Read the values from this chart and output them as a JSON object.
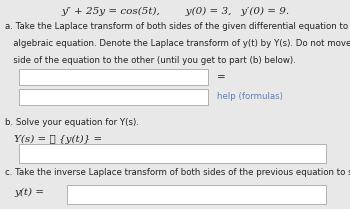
{
  "bg_color": "#e8e8e8",
  "box_color": "#ffffff",
  "box_edge_color": "#b0b0b0",
  "link_color": "#5b7fbf",
  "text_color": "#222222",
  "title_line1": "y″ + 25y = cos(5t),",
  "title_line2": "y(0) = 3,   y′(0) = 9.",
  "part_a_line1": "a. Take the Laplace transform of both sides of the given differential equation to create the corresponding",
  "part_a_line2": "   algebraic equation. Denote the Laplace transform of y(t) by Y(s). Do not move any terms from one",
  "part_a_line3": "   side of the equation to the other (until you get to part (b) below).",
  "equals_sign": "=",
  "help_link": "help (formulas)",
  "part_b_label": "b. Solve your equation for Y(s).",
  "part_b_eq": "Y(s) = ℒ {y(t)} =",
  "part_c_label": "c. Take the inverse Laplace transform of both sides of the previous equation to solve for y(t).",
  "part_c_eq": "y(t) =",
  "fs_title": 7.5,
  "fs_body": 6.2,
  "fs_eq": 7.5,
  "fs_link": 6.2
}
